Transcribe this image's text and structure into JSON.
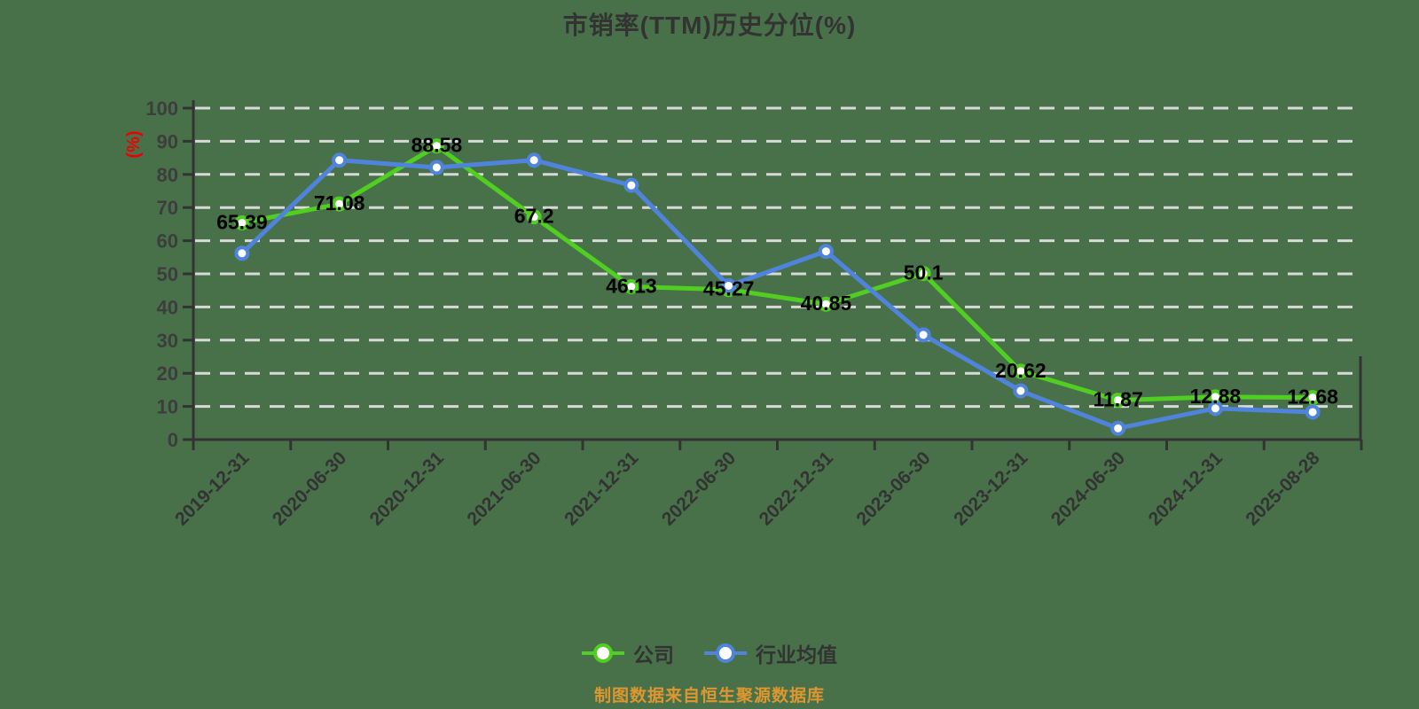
{
  "page": {
    "background_color": "#487149",
    "title_color": "#333333"
  },
  "chart_data": {
    "type": "line",
    "title": "市销率(TTM)历史分位(%)",
    "source_note": "制图数据来自恒生聚源数据库",
    "source_note_color": "#DE9730",
    "categories": [
      "2019-12-31",
      "2020-06-30",
      "2020-12-31",
      "2021-06-30",
      "2021-12-31",
      "2022-06-30",
      "2022-12-31",
      "2023-06-30",
      "2023-12-31",
      "2024-06-30",
      "2024-12-31",
      "2025-08-28"
    ],
    "x_axis": {
      "tick_label_color": "#333333",
      "rotation_degrees": 45
    },
    "y_axis": {
      "label": "(%)",
      "label_color": "#EE0000",
      "min": 0,
      "max": 100,
      "step": 10,
      "tick_labels": [
        "0",
        "10",
        "20",
        "30",
        "40",
        "50",
        "60",
        "70",
        "80",
        "90",
        "100"
      ],
      "tick_label_color": "#3D3D3D"
    },
    "grid": {
      "show": true,
      "style": "dashed",
      "color": "#D9D9D9"
    },
    "legend_position": "bottom-center",
    "series": [
      {
        "name": "公司",
        "color": "#50CF22",
        "show_labels": true,
        "values": [
          65.39,
          71.08,
          88.58,
          67.2,
          46.13,
          45.27,
          40.85,
          50.1,
          20.62,
          11.87,
          12.88,
          12.68
        ],
        "labels": [
          "65.39",
          "71.08",
          "88.58",
          "67.2",
          "46.13",
          "45.27",
          "40.85",
          "50.1",
          "20.62",
          "11.87",
          "12.88",
          "12.68"
        ]
      },
      {
        "name": "行业均值",
        "color": "#5084DC",
        "show_labels": false,
        "values": [
          56.2,
          84.3,
          82.1,
          84.3,
          76.7,
          46.4,
          56.8,
          31.6,
          14.7,
          3.4,
          9.4,
          8.3
        ]
      }
    ]
  }
}
